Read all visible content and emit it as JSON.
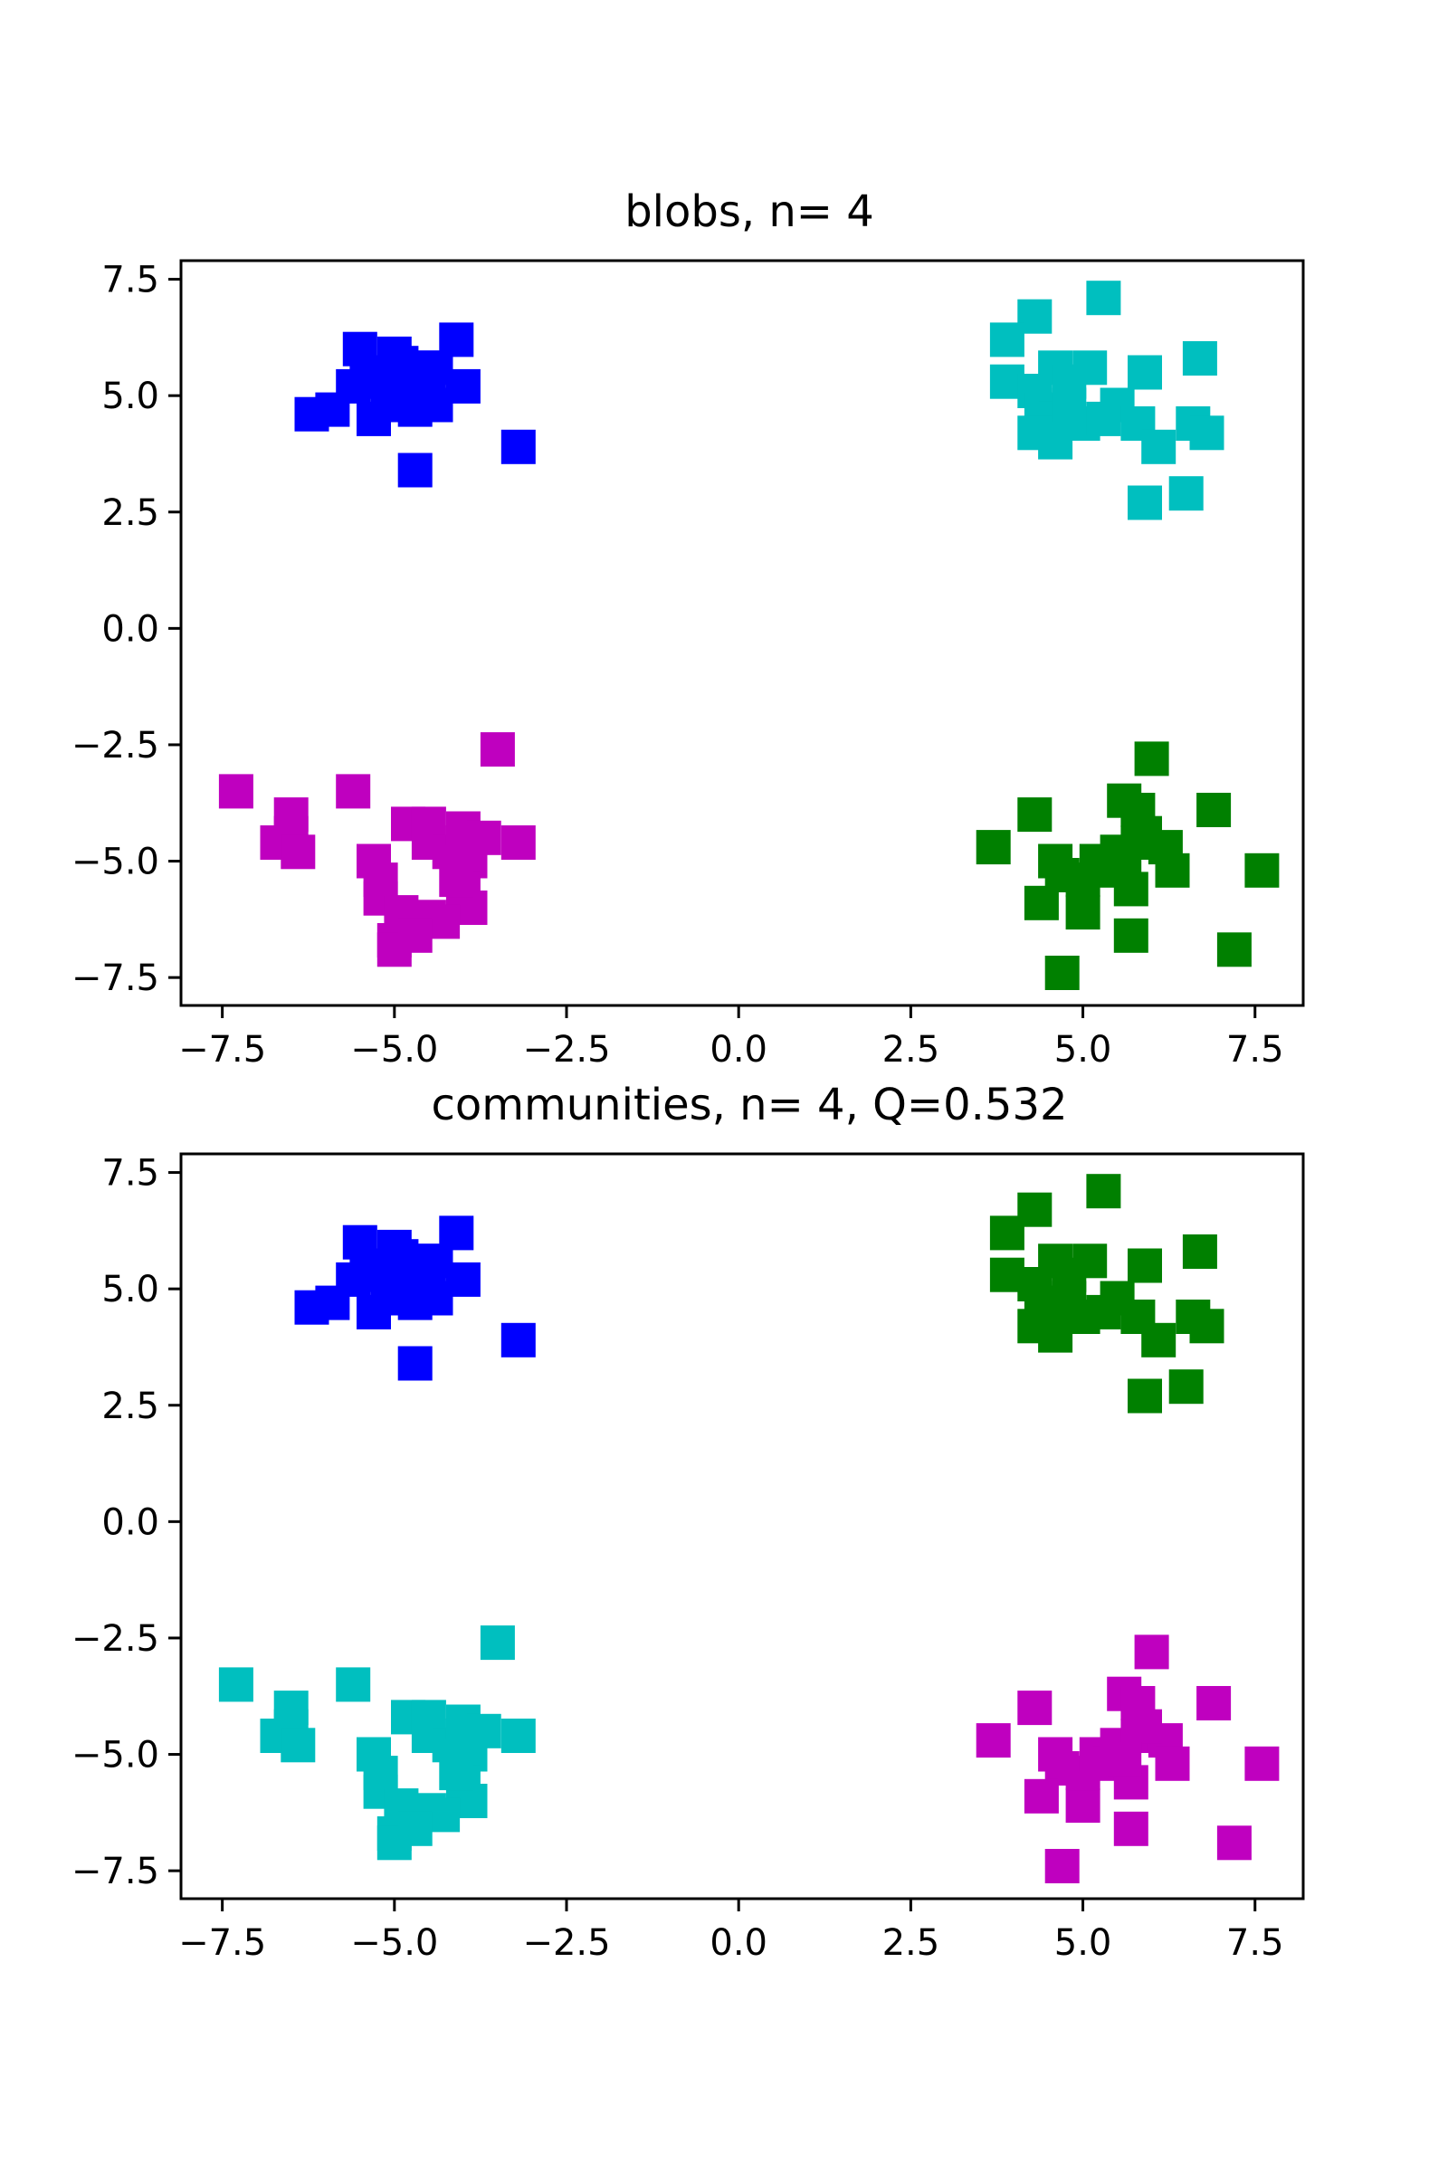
{
  "chart_data": [
    {
      "type": "scatter",
      "title": "blobs, n= 4",
      "xlabel": "",
      "ylabel": "",
      "xlim": [
        -8.1,
        8.2
      ],
      "ylim": [
        -8.1,
        7.9
      ],
      "xticks": [
        -7.5,
        -5.0,
        -2.5,
        0.0,
        2.5,
        5.0,
        7.5
      ],
      "yticks": [
        -7.5,
        -5.0,
        -2.5,
        0.0,
        2.5,
        5.0,
        7.5
      ],
      "xtick_labels": [
        "−7.5",
        "−5.0",
        "−2.5",
        "0.0",
        "2.5",
        "5.0",
        "7.5"
      ],
      "ytick_labels": [
        "−7.5",
        "−5.0",
        "−2.5",
        "0.0",
        "2.5",
        "5.0",
        "7.5"
      ],
      "grid": false,
      "marker": "square",
      "series": [
        {
          "color": "#0000ff",
          "points": [
            [
              -5.5,
              6.0
            ],
            [
              -5.4,
              5.5
            ],
            [
              -5.2,
              5.3
            ],
            [
              -5.0,
              5.9
            ],
            [
              -4.9,
              5.7
            ],
            [
              -5.1,
              5.1
            ],
            [
              -4.8,
              5.4
            ],
            [
              -4.6,
              5.6
            ],
            [
              -4.4,
              5.6
            ],
            [
              -4.1,
              6.2
            ],
            [
              -4.0,
              5.2
            ],
            [
              -4.5,
              5.0
            ],
            [
              -4.9,
              4.8
            ],
            [
              -4.7,
              4.7
            ],
            [
              -5.3,
              4.5
            ],
            [
              -6.2,
              4.6
            ],
            [
              -5.9,
              4.7
            ],
            [
              -4.4,
              4.8
            ],
            [
              -4.7,
              3.4
            ],
            [
              -3.2,
              3.9
            ],
            [
              -5.6,
              5.2
            ],
            [
              -4.6,
              5.2
            ]
          ]
        },
        {
          "color": "#00bfbf",
          "points": [
            [
              5.3,
              7.1
            ],
            [
              4.3,
              6.7
            ],
            [
              3.9,
              6.2
            ],
            [
              3.9,
              5.3
            ],
            [
              4.3,
              5.1
            ],
            [
              4.6,
              5.6
            ],
            [
              5.1,
              5.6
            ],
            [
              4.8,
              5.3
            ],
            [
              5.9,
              5.5
            ],
            [
              6.7,
              5.8
            ],
            [
              4.4,
              4.7
            ],
            [
              4.6,
              4.5
            ],
            [
              4.3,
              4.2
            ],
            [
              4.6,
              4.0
            ],
            [
              5.0,
              4.4
            ],
            [
              5.3,
              4.5
            ],
            [
              5.5,
              4.8
            ],
            [
              5.8,
              4.4
            ],
            [
              6.1,
              3.9
            ],
            [
              6.6,
              4.4
            ],
            [
              6.8,
              4.2
            ],
            [
              5.9,
              2.7
            ],
            [
              6.5,
              2.9
            ],
            [
              4.8,
              4.8
            ]
          ]
        },
        {
          "color": "#bf00bf",
          "points": [
            [
              -7.3,
              -3.5
            ],
            [
              -6.5,
              -4.0
            ],
            [
              -6.5,
              -4.4
            ],
            [
              -6.7,
              -4.6
            ],
            [
              -6.4,
              -4.8
            ],
            [
              -5.6,
              -3.5
            ],
            [
              -5.3,
              -5.0
            ],
            [
              -5.2,
              -5.4
            ],
            [
              -5.2,
              -5.8
            ],
            [
              -4.8,
              -4.2
            ],
            [
              -4.5,
              -4.2
            ],
            [
              -4.5,
              -4.6
            ],
            [
              -4.2,
              -4.8
            ],
            [
              -4.0,
              -4.3
            ],
            [
              -3.7,
              -4.5
            ],
            [
              -3.2,
              -4.6
            ],
            [
              -3.5,
              -2.6
            ],
            [
              -3.9,
              -5.0
            ],
            [
              -4.0,
              -5.6
            ],
            [
              -3.9,
              -6.0
            ],
            [
              -4.3,
              -6.3
            ],
            [
              -4.5,
              -6.2
            ],
            [
              -4.9,
              -6.1
            ],
            [
              -5.0,
              -6.7
            ],
            [
              -5.0,
              -6.9
            ],
            [
              -4.7,
              -6.6
            ],
            [
              -4.1,
              -5.4
            ]
          ]
        },
        {
          "color": "#008000",
          "points": [
            [
              3.7,
              -4.7
            ],
            [
              4.3,
              -4.0
            ],
            [
              4.6,
              -5.0
            ],
            [
              4.7,
              -5.3
            ],
            [
              4.4,
              -5.9
            ],
            [
              4.7,
              -7.4
            ],
            [
              5.0,
              -6.1
            ],
            [
              5.0,
              -5.4
            ],
            [
              5.2,
              -5.0
            ],
            [
              5.4,
              -5.2
            ],
            [
              5.5,
              -4.8
            ],
            [
              5.6,
              -3.7
            ],
            [
              5.8,
              -3.9
            ],
            [
              6.0,
              -2.8
            ],
            [
              5.8,
              -4.6
            ],
            [
              6.2,
              -4.7
            ],
            [
              6.3,
              -5.2
            ],
            [
              5.7,
              -5.6
            ],
            [
              5.7,
              -6.6
            ],
            [
              6.9,
              -3.9
            ],
            [
              7.6,
              -5.2
            ],
            [
              7.2,
              -6.9
            ],
            [
              5.9,
              -4.4
            ],
            [
              5.6,
              -5.1
            ]
          ]
        }
      ]
    },
    {
      "type": "scatter",
      "title": "communities, n= 4, Q=0.532",
      "xlabel": "",
      "ylabel": "",
      "xlim": [
        -8.1,
        8.2
      ],
      "ylim": [
        -8.1,
        7.9
      ],
      "xticks": [
        -7.5,
        -5.0,
        -2.5,
        0.0,
        2.5,
        5.0,
        7.5
      ],
      "yticks": [
        -7.5,
        -5.0,
        -2.5,
        0.0,
        2.5,
        5.0,
        7.5
      ],
      "xtick_labels": [
        "−7.5",
        "−5.0",
        "−2.5",
        "0.0",
        "2.5",
        "5.0",
        "7.5"
      ],
      "ytick_labels": [
        "−7.5",
        "−5.0",
        "−2.5",
        "0.0",
        "2.5",
        "5.0",
        "7.5"
      ],
      "grid": false,
      "marker": "square",
      "series": [
        {
          "color": "#0000ff",
          "points": [
            [
              -5.5,
              6.0
            ],
            [
              -5.4,
              5.5
            ],
            [
              -5.2,
              5.3
            ],
            [
              -5.0,
              5.9
            ],
            [
              -4.9,
              5.7
            ],
            [
              -5.1,
              5.1
            ],
            [
              -4.8,
              5.4
            ],
            [
              -4.6,
              5.6
            ],
            [
              -4.4,
              5.6
            ],
            [
              -4.1,
              6.2
            ],
            [
              -4.0,
              5.2
            ],
            [
              -4.5,
              5.0
            ],
            [
              -4.9,
              4.8
            ],
            [
              -4.7,
              4.7
            ],
            [
              -5.3,
              4.5
            ],
            [
              -6.2,
              4.6
            ],
            [
              -5.9,
              4.7
            ],
            [
              -4.4,
              4.8
            ],
            [
              -4.7,
              3.4
            ],
            [
              -3.2,
              3.9
            ],
            [
              -5.6,
              5.2
            ],
            [
              -4.6,
              5.2
            ]
          ]
        },
        {
          "color": "#008000",
          "points": [
            [
              5.3,
              7.1
            ],
            [
              4.3,
              6.7
            ],
            [
              3.9,
              6.2
            ],
            [
              3.9,
              5.3
            ],
            [
              4.3,
              5.1
            ],
            [
              4.6,
              5.6
            ],
            [
              5.1,
              5.6
            ],
            [
              4.8,
              5.3
            ],
            [
              5.9,
              5.5
            ],
            [
              6.7,
              5.8
            ],
            [
              4.4,
              4.7
            ],
            [
              4.6,
              4.5
            ],
            [
              4.3,
              4.2
            ],
            [
              4.6,
              4.0
            ],
            [
              5.0,
              4.4
            ],
            [
              5.3,
              4.5
            ],
            [
              5.5,
              4.8
            ],
            [
              5.8,
              4.4
            ],
            [
              6.1,
              3.9
            ],
            [
              6.6,
              4.4
            ],
            [
              6.8,
              4.2
            ],
            [
              5.9,
              2.7
            ],
            [
              6.5,
              2.9
            ],
            [
              4.8,
              4.8
            ]
          ]
        },
        {
          "color": "#00bfbf",
          "points": [
            [
              -7.3,
              -3.5
            ],
            [
              -6.5,
              -4.0
            ],
            [
              -6.5,
              -4.4
            ],
            [
              -6.7,
              -4.6
            ],
            [
              -6.4,
              -4.8
            ],
            [
              -5.6,
              -3.5
            ],
            [
              -5.3,
              -5.0
            ],
            [
              -5.2,
              -5.4
            ],
            [
              -5.2,
              -5.8
            ],
            [
              -4.8,
              -4.2
            ],
            [
              -4.5,
              -4.2
            ],
            [
              -4.5,
              -4.6
            ],
            [
              -4.2,
              -4.8
            ],
            [
              -4.0,
              -4.3
            ],
            [
              -3.7,
              -4.5
            ],
            [
              -3.2,
              -4.6
            ],
            [
              -3.5,
              -2.6
            ],
            [
              -3.9,
              -5.0
            ],
            [
              -4.0,
              -5.6
            ],
            [
              -3.9,
              -6.0
            ],
            [
              -4.3,
              -6.3
            ],
            [
              -4.5,
              -6.2
            ],
            [
              -4.9,
              -6.1
            ],
            [
              -5.0,
              -6.7
            ],
            [
              -5.0,
              -6.9
            ],
            [
              -4.7,
              -6.6
            ],
            [
              -4.1,
              -5.4
            ]
          ]
        },
        {
          "color": "#bf00bf",
          "points": [
            [
              3.7,
              -4.7
            ],
            [
              4.3,
              -4.0
            ],
            [
              4.6,
              -5.0
            ],
            [
              4.7,
              -5.3
            ],
            [
              4.4,
              -5.9
            ],
            [
              4.7,
              -7.4
            ],
            [
              5.0,
              -6.1
            ],
            [
              5.0,
              -5.4
            ],
            [
              5.2,
              -5.0
            ],
            [
              5.4,
              -5.2
            ],
            [
              5.5,
              -4.8
            ],
            [
              5.6,
              -3.7
            ],
            [
              5.8,
              -3.9
            ],
            [
              6.0,
              -2.8
            ],
            [
              5.8,
              -4.6
            ],
            [
              6.2,
              -4.7
            ],
            [
              6.3,
              -5.2
            ],
            [
              5.7,
              -5.6
            ],
            [
              5.7,
              -6.6
            ],
            [
              6.9,
              -3.9
            ],
            [
              7.6,
              -5.2
            ],
            [
              7.2,
              -6.9
            ],
            [
              5.9,
              -4.4
            ],
            [
              5.6,
              -5.1
            ]
          ]
        }
      ]
    }
  ]
}
